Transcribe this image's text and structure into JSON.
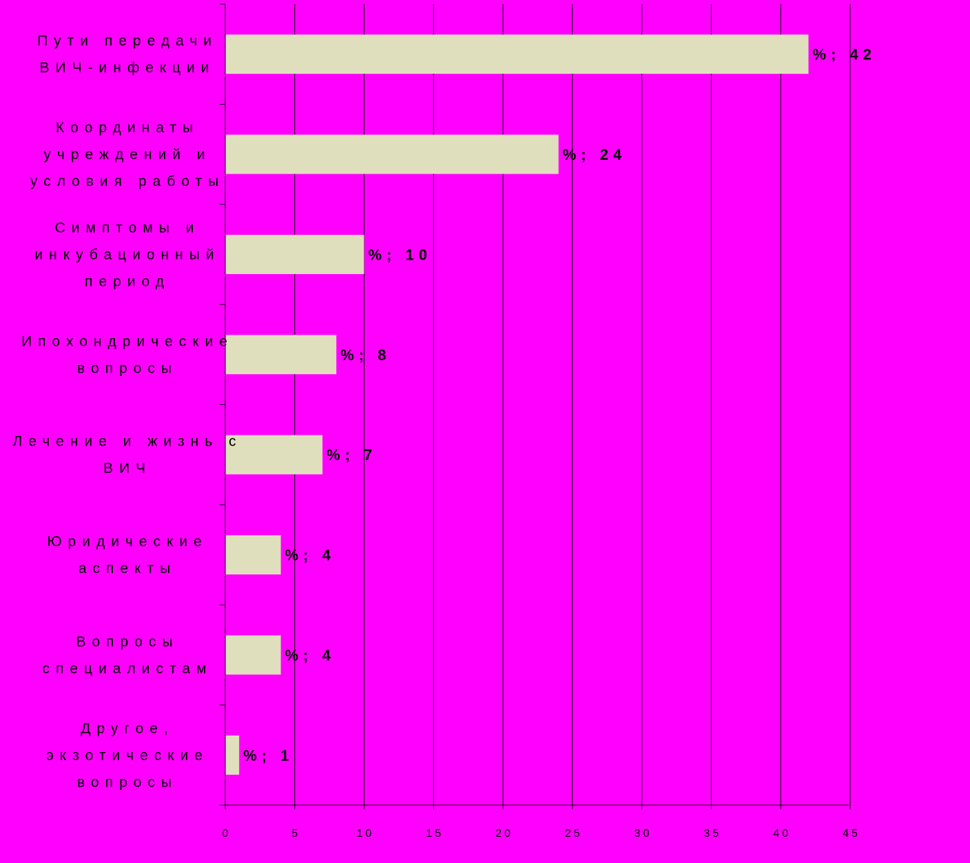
{
  "colors": {
    "background": "#ff00ff",
    "bar_fill": "#e0dfbd",
    "gridline": "#000000",
    "text": "#000000"
  },
  "chart_data": {
    "type": "bar",
    "orientation": "horizontal",
    "categories": [
      [
        "Пути передачи",
        "ВИЧ-инфекции"
      ],
      [
        "Координаты",
        "учреждений и",
        "условия работы"
      ],
      [
        "Симптомы и",
        "инкубационный",
        "период"
      ],
      [
        "Ипохондрические",
        "вопросы"
      ],
      [
        "Лечение и жизнь с",
        "ВИЧ"
      ],
      [
        "Юридические",
        "аспекты"
      ],
      [
        "Вопросы",
        "специалистам"
      ],
      [
        "Другое,",
        "экзотические",
        "вопросы"
      ]
    ],
    "values": [
      42,
      24,
      10,
      8,
      7,
      4,
      4,
      1
    ],
    "data_labels": [
      "%; 42",
      "%; 24",
      "%; 10",
      "%; 8",
      "%; 7",
      "%; 4",
      "%; 4",
      "%; 1"
    ],
    "x_ticks": [
      0,
      5,
      10,
      15,
      20,
      25,
      30,
      35,
      40,
      45
    ],
    "xlim": [
      0,
      45
    ],
    "grid": "vertical",
    "legend": "none",
    "title": "",
    "xlabel": "",
    "ylabel": ""
  }
}
